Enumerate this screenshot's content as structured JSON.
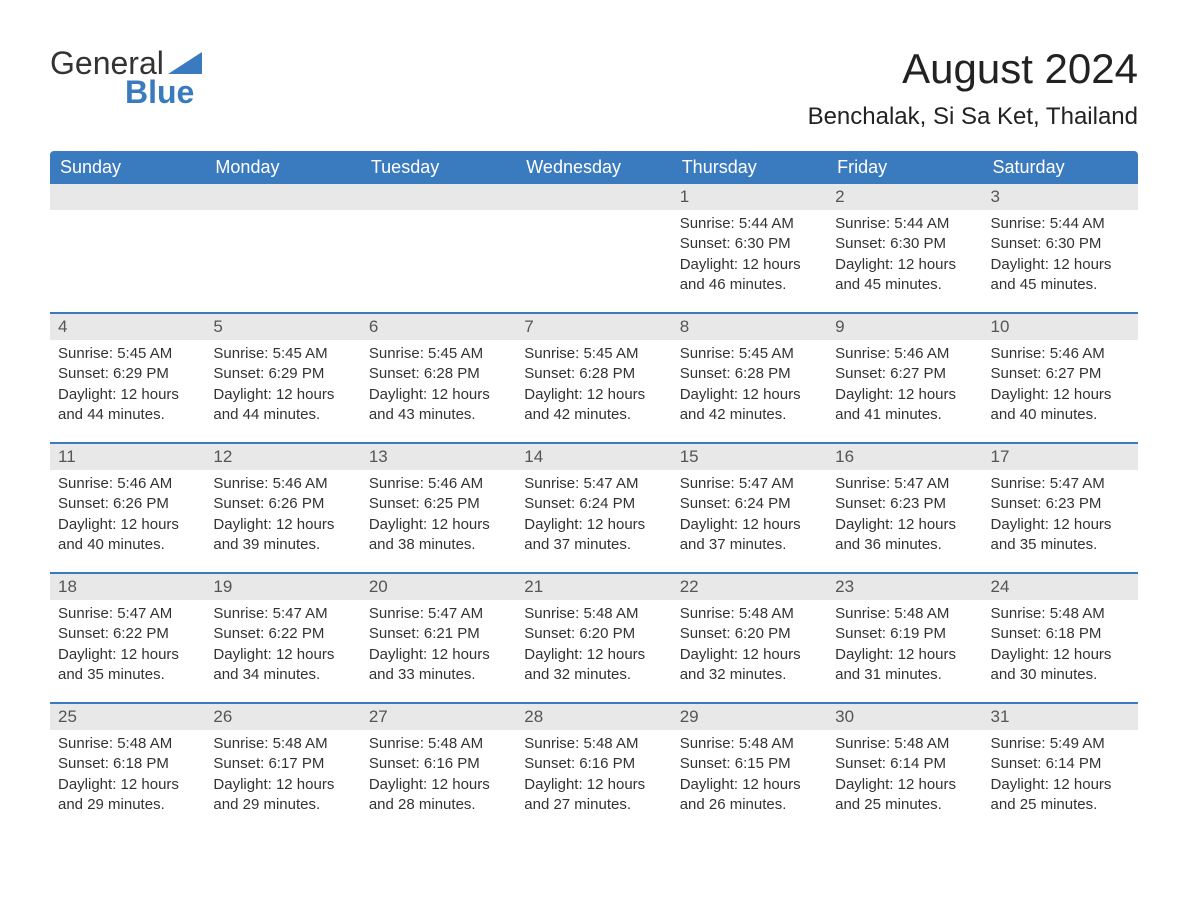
{
  "logo": {
    "text1": "General",
    "text2": "Blue",
    "triangle_color": "#3a7bbf"
  },
  "header": {
    "month_title": "August 2024",
    "location": "Benchalak, Si Sa Ket, Thailand"
  },
  "colors": {
    "header_bg": "#3a7bbf",
    "daybar_bg": "#e8e8e8",
    "text": "#333333",
    "separator": "#3a7bbf"
  },
  "fonts": {
    "title_size": 42,
    "location_size": 24,
    "weekday_size": 18,
    "daynum_size": 17,
    "body_size": 15
  },
  "weekdays": [
    "Sunday",
    "Monday",
    "Tuesday",
    "Wednesday",
    "Thursday",
    "Friday",
    "Saturday"
  ],
  "weeks": [
    [
      {
        "day": "",
        "sunrise": "",
        "sunset": "",
        "daylight": ""
      },
      {
        "day": "",
        "sunrise": "",
        "sunset": "",
        "daylight": ""
      },
      {
        "day": "",
        "sunrise": "",
        "sunset": "",
        "daylight": ""
      },
      {
        "day": "",
        "sunrise": "",
        "sunset": "",
        "daylight": ""
      },
      {
        "day": "1",
        "sunrise": "Sunrise: 5:44 AM",
        "sunset": "Sunset: 6:30 PM",
        "daylight": "Daylight: 12 hours and 46 minutes."
      },
      {
        "day": "2",
        "sunrise": "Sunrise: 5:44 AM",
        "sunset": "Sunset: 6:30 PM",
        "daylight": "Daylight: 12 hours and 45 minutes."
      },
      {
        "day": "3",
        "sunrise": "Sunrise: 5:44 AM",
        "sunset": "Sunset: 6:30 PM",
        "daylight": "Daylight: 12 hours and 45 minutes."
      }
    ],
    [
      {
        "day": "4",
        "sunrise": "Sunrise: 5:45 AM",
        "sunset": "Sunset: 6:29 PM",
        "daylight": "Daylight: 12 hours and 44 minutes."
      },
      {
        "day": "5",
        "sunrise": "Sunrise: 5:45 AM",
        "sunset": "Sunset: 6:29 PM",
        "daylight": "Daylight: 12 hours and 44 minutes."
      },
      {
        "day": "6",
        "sunrise": "Sunrise: 5:45 AM",
        "sunset": "Sunset: 6:28 PM",
        "daylight": "Daylight: 12 hours and 43 minutes."
      },
      {
        "day": "7",
        "sunrise": "Sunrise: 5:45 AM",
        "sunset": "Sunset: 6:28 PM",
        "daylight": "Daylight: 12 hours and 42 minutes."
      },
      {
        "day": "8",
        "sunrise": "Sunrise: 5:45 AM",
        "sunset": "Sunset: 6:28 PM",
        "daylight": "Daylight: 12 hours and 42 minutes."
      },
      {
        "day": "9",
        "sunrise": "Sunrise: 5:46 AM",
        "sunset": "Sunset: 6:27 PM",
        "daylight": "Daylight: 12 hours and 41 minutes."
      },
      {
        "day": "10",
        "sunrise": "Sunrise: 5:46 AM",
        "sunset": "Sunset: 6:27 PM",
        "daylight": "Daylight: 12 hours and 40 minutes."
      }
    ],
    [
      {
        "day": "11",
        "sunrise": "Sunrise: 5:46 AM",
        "sunset": "Sunset: 6:26 PM",
        "daylight": "Daylight: 12 hours and 40 minutes."
      },
      {
        "day": "12",
        "sunrise": "Sunrise: 5:46 AM",
        "sunset": "Sunset: 6:26 PM",
        "daylight": "Daylight: 12 hours and 39 minutes."
      },
      {
        "day": "13",
        "sunrise": "Sunrise: 5:46 AM",
        "sunset": "Sunset: 6:25 PM",
        "daylight": "Daylight: 12 hours and 38 minutes."
      },
      {
        "day": "14",
        "sunrise": "Sunrise: 5:47 AM",
        "sunset": "Sunset: 6:24 PM",
        "daylight": "Daylight: 12 hours and 37 minutes."
      },
      {
        "day": "15",
        "sunrise": "Sunrise: 5:47 AM",
        "sunset": "Sunset: 6:24 PM",
        "daylight": "Daylight: 12 hours and 37 minutes."
      },
      {
        "day": "16",
        "sunrise": "Sunrise: 5:47 AM",
        "sunset": "Sunset: 6:23 PM",
        "daylight": "Daylight: 12 hours and 36 minutes."
      },
      {
        "day": "17",
        "sunrise": "Sunrise: 5:47 AM",
        "sunset": "Sunset: 6:23 PM",
        "daylight": "Daylight: 12 hours and 35 minutes."
      }
    ],
    [
      {
        "day": "18",
        "sunrise": "Sunrise: 5:47 AM",
        "sunset": "Sunset: 6:22 PM",
        "daylight": "Daylight: 12 hours and 35 minutes."
      },
      {
        "day": "19",
        "sunrise": "Sunrise: 5:47 AM",
        "sunset": "Sunset: 6:22 PM",
        "daylight": "Daylight: 12 hours and 34 minutes."
      },
      {
        "day": "20",
        "sunrise": "Sunrise: 5:47 AM",
        "sunset": "Sunset: 6:21 PM",
        "daylight": "Daylight: 12 hours and 33 minutes."
      },
      {
        "day": "21",
        "sunrise": "Sunrise: 5:48 AM",
        "sunset": "Sunset: 6:20 PM",
        "daylight": "Daylight: 12 hours and 32 minutes."
      },
      {
        "day": "22",
        "sunrise": "Sunrise: 5:48 AM",
        "sunset": "Sunset: 6:20 PM",
        "daylight": "Daylight: 12 hours and 32 minutes."
      },
      {
        "day": "23",
        "sunrise": "Sunrise: 5:48 AM",
        "sunset": "Sunset: 6:19 PM",
        "daylight": "Daylight: 12 hours and 31 minutes."
      },
      {
        "day": "24",
        "sunrise": "Sunrise: 5:48 AM",
        "sunset": "Sunset: 6:18 PM",
        "daylight": "Daylight: 12 hours and 30 minutes."
      }
    ],
    [
      {
        "day": "25",
        "sunrise": "Sunrise: 5:48 AM",
        "sunset": "Sunset: 6:18 PM",
        "daylight": "Daylight: 12 hours and 29 minutes."
      },
      {
        "day": "26",
        "sunrise": "Sunrise: 5:48 AM",
        "sunset": "Sunset: 6:17 PM",
        "daylight": "Daylight: 12 hours and 29 minutes."
      },
      {
        "day": "27",
        "sunrise": "Sunrise: 5:48 AM",
        "sunset": "Sunset: 6:16 PM",
        "daylight": "Daylight: 12 hours and 28 minutes."
      },
      {
        "day": "28",
        "sunrise": "Sunrise: 5:48 AM",
        "sunset": "Sunset: 6:16 PM",
        "daylight": "Daylight: 12 hours and 27 minutes."
      },
      {
        "day": "29",
        "sunrise": "Sunrise: 5:48 AM",
        "sunset": "Sunset: 6:15 PM",
        "daylight": "Daylight: 12 hours and 26 minutes."
      },
      {
        "day": "30",
        "sunrise": "Sunrise: 5:48 AM",
        "sunset": "Sunset: 6:14 PM",
        "daylight": "Daylight: 12 hours and 25 minutes."
      },
      {
        "day": "31",
        "sunrise": "Sunrise: 5:49 AM",
        "sunset": "Sunset: 6:14 PM",
        "daylight": "Daylight: 12 hours and 25 minutes."
      }
    ]
  ]
}
